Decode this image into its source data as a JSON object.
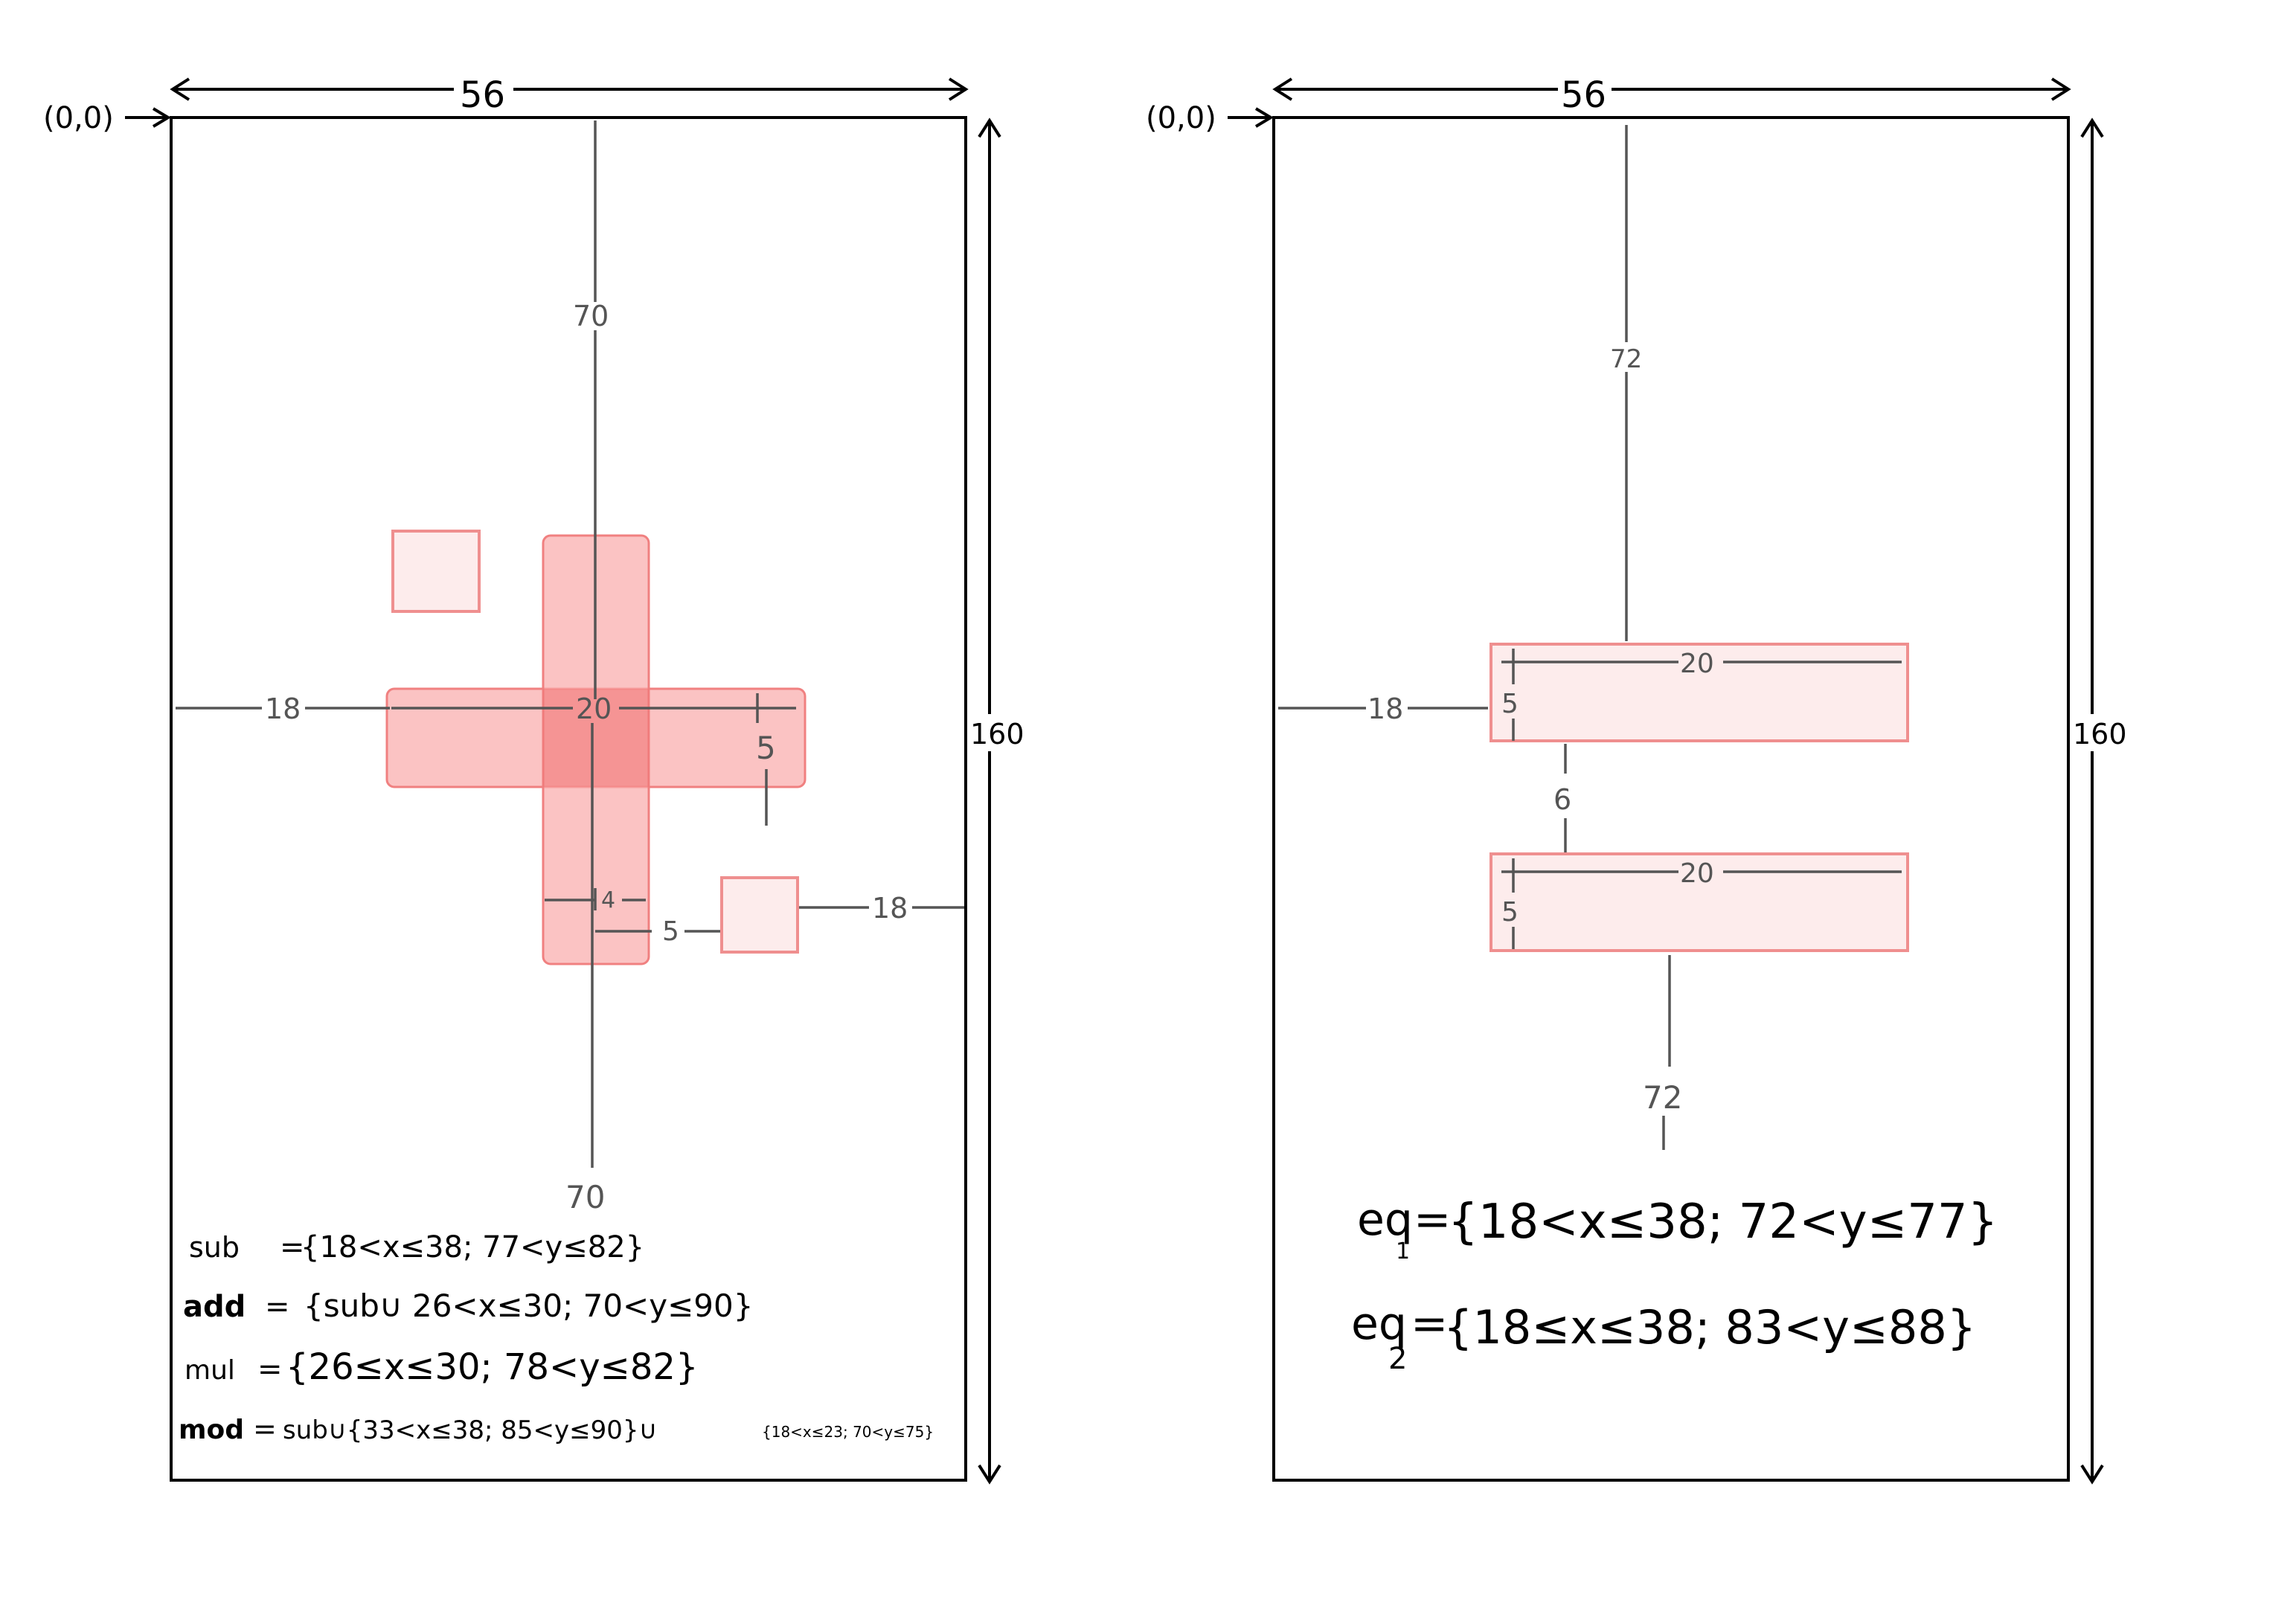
{
  "left_panel": {
    "origin": "(0,0)",
    "width": "56",
    "height": "160",
    "dims": {
      "top_distance": "70",
      "bottom_distance": "70",
      "left_distance": "18",
      "plus_width": "20",
      "plus_thickness": "5",
      "bar_thickness": "4",
      "gap": "5",
      "right_distance": "18"
    },
    "formulas": [
      {
        "name": "sub",
        "eq": "=",
        "expr": "{18<x≤38; 77<y≤82}"
      },
      {
        "name": "add",
        "eq": "=",
        "expr": "{sub∪ 26<x≤30; 70<y≤90}"
      },
      {
        "name": "mul",
        "eq": "=",
        "expr": "{26≤x≤30; 78<y≤82}"
      },
      {
        "name": "mod",
        "eq": "=",
        "expr": "sub∪{33<x≤38; 85<y≤90}∪",
        "tail": "{18<x≤23; 70<y≤75}"
      }
    ]
  },
  "right_panel": {
    "origin": "(0,0)",
    "width": "56",
    "height": "160",
    "dims": {
      "top_distance": "72",
      "bottom_distance": "72",
      "left_distance": "18",
      "bar1_width": "20",
      "bar1_height": "5",
      "gap": "6",
      "bar2_width": "20",
      "bar2_height": "5"
    },
    "formulas": [
      {
        "name": "eq",
        "sub": "1",
        "eq": "=",
        "expr": "{18<x≤38; 72<y≤77}"
      },
      {
        "name": "eq",
        "sub": "2",
        "eq": "=",
        "expr": "{18≤x≤38; 83<y≤88}"
      }
    ]
  },
  "colors": {
    "pink_fill": "#fdecec",
    "pink_stroke": "#ef8f8f",
    "red_fill": "#f9aaaa",
    "dimension_line": "#555555"
  }
}
